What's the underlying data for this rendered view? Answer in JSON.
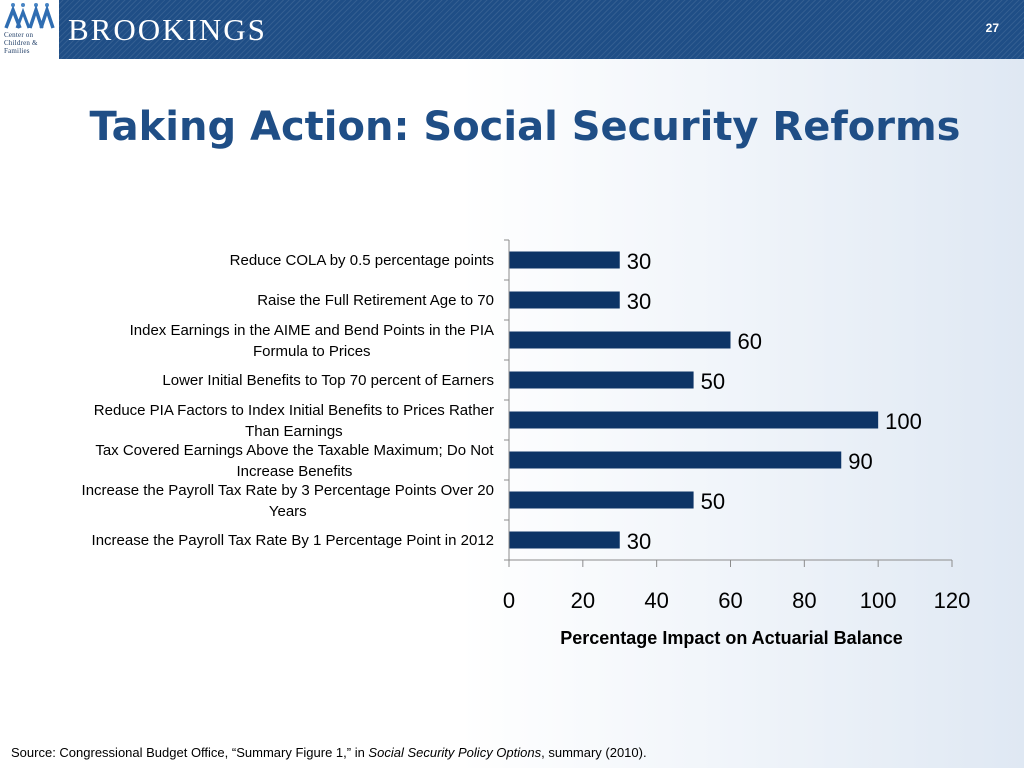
{
  "header": {
    "brand": "BROOKINGS",
    "logo_text": [
      "Center on",
      "Children &",
      "Families"
    ],
    "slide_number": "27"
  },
  "slide": {
    "title": "Taking Action: Social Security Reforms"
  },
  "colors": {
    "bar": "#0d3466",
    "title": "#1f4e86",
    "header_bg": "#1f4e86"
  },
  "chart_data": {
    "type": "bar",
    "orientation": "horizontal",
    "categories": [
      [
        "Reduce COLA by 0.5 percentage points"
      ],
      [
        "Raise the Full Retirement Age to 70"
      ],
      [
        "Index Earnings in the AIME and Bend Points in the PIA",
        "Formula to Prices"
      ],
      [
        "Lower Initial Benefits to Top 70 percent of Earners"
      ],
      [
        "Reduce PIA Factors to Index Initial Benefits to Prices Rather",
        "Than Earnings"
      ],
      [
        "Tax Covered Earnings Above the Taxable Maximum; Do Not",
        "Increase Benefits"
      ],
      [
        "Increase the Payroll Tax Rate by 3 Percentage Points Over 20",
        "Years"
      ],
      [
        "Increase the Payroll Tax Rate By 1 Percentage Point in 2012"
      ]
    ],
    "values": [
      30,
      30,
      60,
      50,
      100,
      90,
      50,
      30
    ],
    "data_labels": [
      "30",
      "30",
      "60",
      "50",
      "100",
      "90",
      "50",
      "30"
    ],
    "xlabel": "Percentage Impact on Actuarial Balance",
    "xlim": [
      0,
      120
    ],
    "xticks": [
      0,
      20,
      40,
      60,
      80,
      100,
      120
    ],
    "grid": false,
    "legend": "none"
  },
  "footer": {
    "source_prefix": "Source: Congressional Budget Office, “Summary Figure 1,” in ",
    "source_title": "Social Security Policy Options",
    "source_suffix": ", summary (2010)."
  }
}
